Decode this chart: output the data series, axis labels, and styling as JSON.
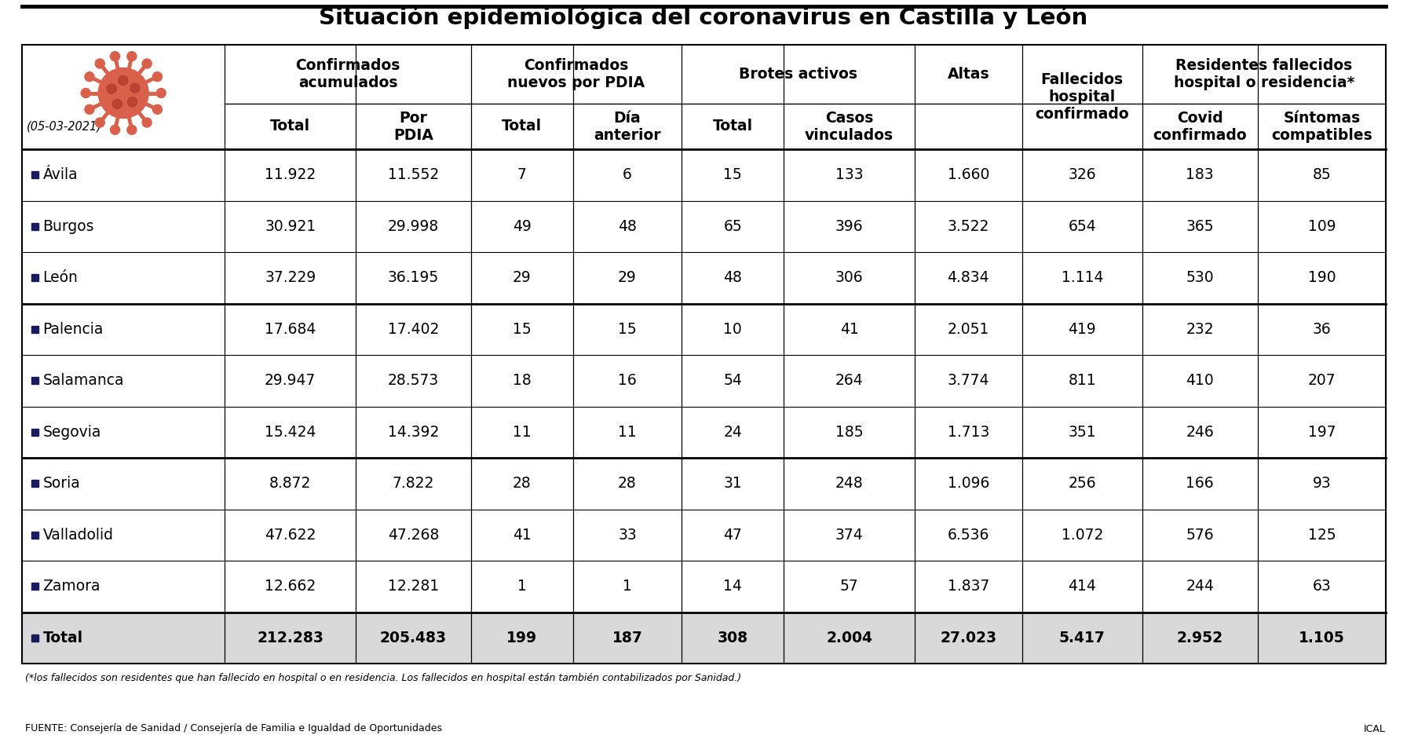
{
  "title": "Situación epidemiológica del coronavirus en Castilla y León",
  "date": "(05-03-2021)",
  "provinces": [
    "Ávila",
    "Burgos",
    "León",
    "Palencia",
    "Salamanca",
    "Segovia",
    "Soria",
    "Valladolid",
    "Zamora",
    "Total"
  ],
  "data": [
    [
      "11.922",
      "11.552",
      "7",
      "6",
      "15",
      "133",
      "1.660",
      "326",
      "183",
      "85"
    ],
    [
      "30.921",
      "29.998",
      "49",
      "48",
      "65",
      "396",
      "3.522",
      "654",
      "365",
      "109"
    ],
    [
      "37.229",
      "36.195",
      "29",
      "29",
      "48",
      "306",
      "4.834",
      "1.114",
      "530",
      "190"
    ],
    [
      "17.684",
      "17.402",
      "15",
      "15",
      "10",
      "41",
      "2.051",
      "419",
      "232",
      "36"
    ],
    [
      "29.947",
      "28.573",
      "18",
      "16",
      "54",
      "264",
      "3.774",
      "811",
      "410",
      "207"
    ],
    [
      "15.424",
      "14.392",
      "11",
      "11",
      "24",
      "185",
      "1.713",
      "351",
      "246",
      "197"
    ],
    [
      "8.872",
      "7.822",
      "28",
      "28",
      "31",
      "248",
      "1.096",
      "256",
      "166",
      "93"
    ],
    [
      "47.622",
      "47.268",
      "41",
      "33",
      "47",
      "374",
      "6.536",
      "1.072",
      "576",
      "125"
    ],
    [
      "12.662",
      "12.281",
      "1",
      "1",
      "14",
      "57",
      "1.837",
      "414",
      "244",
      "63"
    ],
    [
      "212.283",
      "205.483",
      "199",
      "187",
      "308",
      "2.004",
      "27.023",
      "5.417",
      "2.952",
      "1.105"
    ]
  ],
  "footnote": "(*los fallecidos son residentes que han fallecido en hospital o en residencia. Los fallecidos en hospital están también contabilizados por Sanidad.)",
  "source": "FUENTE: Consejería de Sanidad / Consejería de Familia e Igualdad de Oportunidades",
  "source_right": "ICAL",
  "virus_color": "#d9604a",
  "virus_dark": "#b03a2a",
  "total_bg": "#d9d9d9",
  "thick_row_separators": [
    3,
    6
  ],
  "col_widths_rel": [
    1.55,
    1.0,
    0.88,
    0.78,
    0.83,
    0.78,
    1.0,
    0.82,
    0.92,
    0.88,
    0.98
  ]
}
